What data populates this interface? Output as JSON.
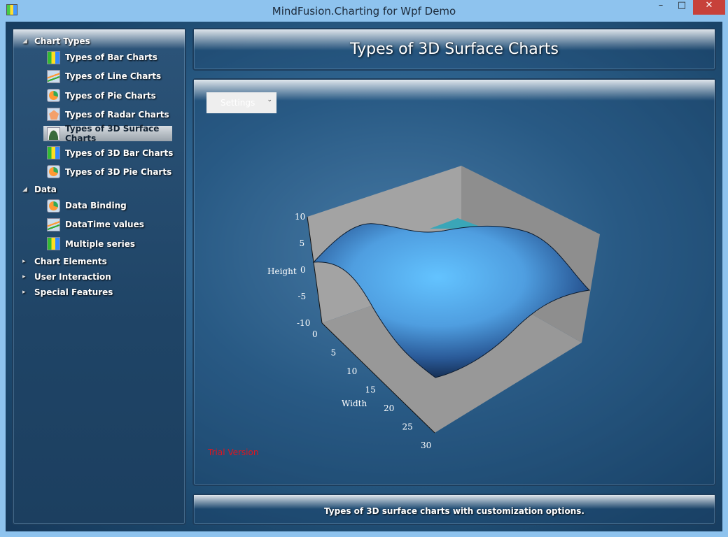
{
  "window": {
    "title": "MindFusion.Charting for Wpf Demo",
    "minimize": "–",
    "maximize": "□",
    "close": "✕"
  },
  "sidebar": {
    "categories": [
      {
        "label": "Chart Types",
        "expanded": true,
        "items": [
          {
            "label": "Types of Bar Charts",
            "icon": "bar-chart-icon"
          },
          {
            "label": "Types of Line Charts",
            "icon": "line-chart-icon"
          },
          {
            "label": "Types of Pie Charts",
            "icon": "pie-chart-icon"
          },
          {
            "label": "Types of Radar Charts",
            "icon": "radar-chart-icon"
          },
          {
            "label": "Types of 3D Surface Charts",
            "icon": "surface-chart-icon",
            "selected": true
          },
          {
            "label": "Types of 3D Bar Charts",
            "icon": "bar-chart-icon"
          },
          {
            "label": "Types of 3D Pie Charts",
            "icon": "pie-chart-icon"
          }
        ]
      },
      {
        "label": "Data",
        "expanded": true,
        "items": [
          {
            "label": "Data Binding",
            "icon": "pie-chart-icon"
          },
          {
            "label": "DataTime values",
            "icon": "line-chart-icon"
          },
          {
            "label": "Multiple series",
            "icon": "bar-chart-icon"
          }
        ]
      },
      {
        "label": "Chart Elements",
        "expanded": false
      },
      {
        "label": "User Interaction",
        "expanded": false
      },
      {
        "label": "Special Features",
        "expanded": false
      }
    ]
  },
  "header": {
    "title": "Types of 3D Surface Charts"
  },
  "main": {
    "settings_label": "Settings",
    "trial_label": "Trial Version"
  },
  "footer": {
    "description": "Types of 3D surface charts with customization options."
  },
  "chart_data": {
    "type": "surface3d",
    "height_axis": {
      "label": "Height",
      "ticks": [
        "10",
        "5",
        "0",
        "-5",
        "-10"
      ],
      "range": [
        -10,
        10
      ]
    },
    "width_axis": {
      "label": "Width",
      "ticks": [
        "0",
        "5",
        "10",
        "15",
        "20",
        "25",
        "30"
      ],
      "range": [
        0,
        30
      ]
    },
    "colors": {
      "surface": "#5ab8f5",
      "walls": "#9a9a9a"
    }
  }
}
